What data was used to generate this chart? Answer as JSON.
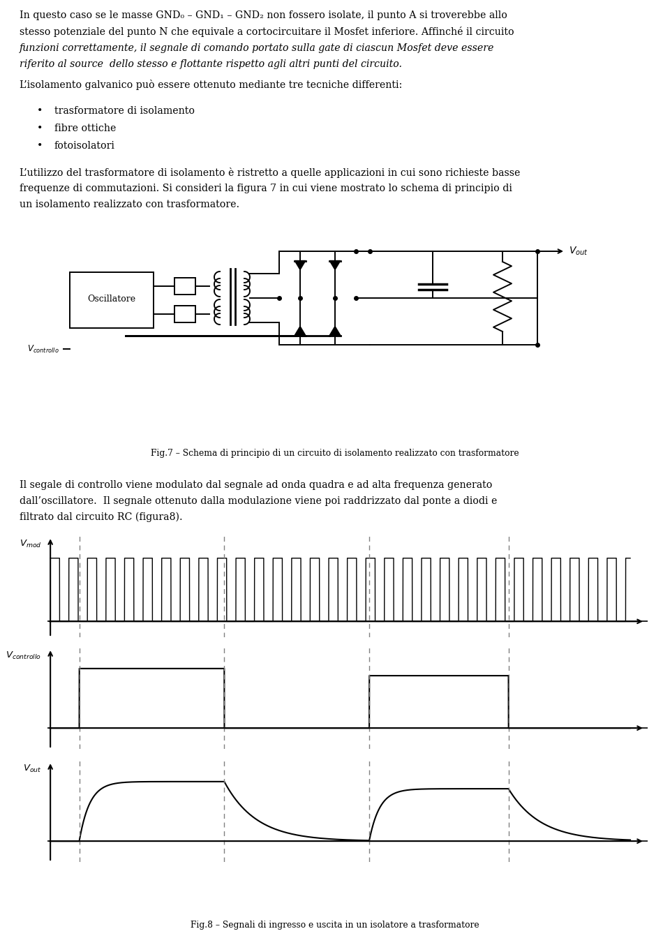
{
  "bg_color": "#ffffff",
  "text_color": "#000000",
  "font_size_body": 10.2,
  "font_size_small": 8.8,
  "font_size_caption": 8.8,
  "p1_line1": "In questo caso se le masse GND₀ – GND₁ – GND₂ non fossero isolate, il punto A si troverebbe allo",
  "p1_line2": "stesso potenziale del punto N che equivale a cortocircuitare il Mosfet inferiore. Affinché il circuito",
  "p1_line3": "funzioni correttamente, il segnale di comando portato sulla gate di ciascun Mosfet deve essere",
  "p1_line4": "riferito al source  dello stesso e flottante rispetto agli altri punti del circuito.",
  "p2": "L’isolamento galvanico può essere ottenuto mediante tre tecniche differenti:",
  "bullet1": "trasformatore di isolamento",
  "bullet2": "fibre ottiche",
  "bullet3": "fotoisolatori",
  "p3_line1": "L’utilizzo del trasformatore di isolamento è ristretto a quelle applicazioni in cui sono richieste basse",
  "p3_line2": "frequenze di commutazioni. Si consideri la figura 7 in cui viene mostrato lo schema di principio di",
  "p3_line3": "un isolamento realizzato con trasformatore.",
  "fig7_caption": "Fig.7 – Schema di principio di un circuito di isolamento realizzato con trasformatore",
  "p4_line1": "Il segale di controllo viene modulato dal segnale ad onda quadra e ad alta frequenza generato",
  "p4_line2": "dall’oscillatore.  Il segnale ottenuto dalla modulazione viene poi raddrizzato dal ponte a diodi e",
  "p4_line3": "filtrato dal circuito RC (figura8).",
  "fig8_caption": "Fig.8 – Segnali di ingresso e uscita in un isolatore a trasformatore",
  "vmod_label": "$V_{mod}$",
  "vcontrollo_label": "$V_{controllo}$",
  "vout_label": "$V_{out}$"
}
